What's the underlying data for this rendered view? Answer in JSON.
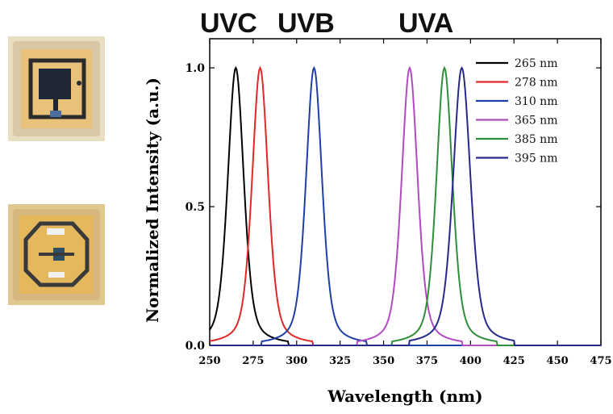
{
  "band_labels": [
    "UVC",
    "UVB",
    "UVA"
  ],
  "led_photos": [
    {
      "name": "led-package-top",
      "frame_color": "#d8c8a6",
      "board_color": "#e8c27a",
      "die_color": "#1f2636"
    },
    {
      "name": "led-package-bottom",
      "frame_color": "#d6b77e",
      "board_color": "#e6b85e",
      "die_color": "#2d4f66"
    }
  ],
  "chart_data": {
    "type": "line",
    "xlabel": "Wavelength (nm)",
    "ylabel": "Normalized Intensity (a.u.)",
    "xlim": [
      250,
      475
    ],
    "ylim": [
      0,
      1.0
    ],
    "xticks": [
      250,
      275,
      300,
      325,
      350,
      375,
      400,
      425,
      450,
      475
    ],
    "xtick_labels": [
      "250",
      "275",
      "300",
      "325",
      "350",
      "375",
      "400",
      "425",
      "450",
      "475"
    ],
    "yticks": [
      0.0,
      0.5,
      1.0
    ],
    "ytick_labels": [
      "0.0",
      "0.5",
      "1.0"
    ],
    "legend_position": "top-right",
    "grid": false,
    "series": [
      {
        "name": "265 nm",
        "peak": 265,
        "fwhm": 11,
        "color": "#000000"
      },
      {
        "name": "278 nm",
        "peak": 279,
        "fwhm": 11,
        "color": "#e0282a"
      },
      {
        "name": "310 nm",
        "peak": 310,
        "fwhm": 11,
        "color": "#1f3fa8"
      },
      {
        "name": "365 nm",
        "peak": 365,
        "fwhm": 11,
        "color": "#b04cbf"
      },
      {
        "name": "385 nm",
        "peak": 385,
        "fwhm": 11,
        "color": "#2e8f3a"
      },
      {
        "name": "395 nm",
        "peak": 395,
        "fwhm": 12,
        "color": "#262a8c"
      }
    ]
  }
}
